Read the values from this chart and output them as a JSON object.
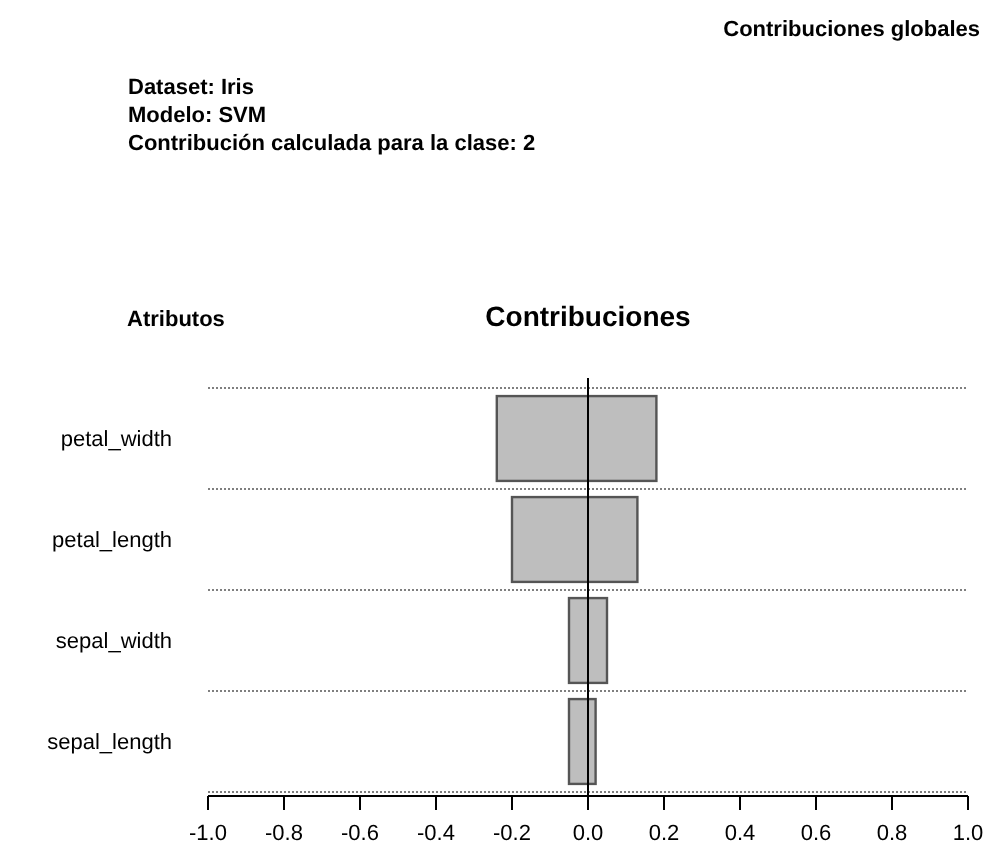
{
  "chart_data": {
    "type": "bar",
    "orientation": "horizontal",
    "title": "Contribuciones",
    "ylabel": "Atributos",
    "annotations": [
      "Contribuciones globales",
      "Dataset: Iris",
      "Modelo: SVM",
      "Contribución calculada para la clase: 2"
    ],
    "categories": [
      "petal_width",
      "petal_length",
      "sepal_width",
      "sepal_length"
    ],
    "values": [
      0.42,
      0.33,
      0.1,
      0.07
    ],
    "base": [
      -0.24,
      -0.2,
      -0.05,
      -0.05
    ],
    "color": "#bebebe",
    "xlim": [
      -1.0,
      1.0
    ],
    "xticks": [
      {
        "value": -1,
        "label": "-1.0"
      },
      {
        "value": -0.8,
        "label": "-0.8"
      },
      {
        "value": -0.6,
        "label": "-0.6"
      },
      {
        "value": -0.4,
        "label": "-0.4"
      },
      {
        "value": -0.2,
        "label": "-0.2"
      },
      {
        "value": 0,
        "label": "0.0"
      },
      {
        "value": 0.2,
        "label": "0.2"
      },
      {
        "value": 0.4,
        "label": "0.4"
      },
      {
        "value": 0.6,
        "label": "0.6"
      },
      {
        "value": 0.8,
        "label": "0.8"
      },
      {
        "value": 1,
        "label": "1.0"
      }
    ],
    "ref_lines": [
      {
        "axis": "x",
        "value": 0,
        "color": "#000000"
      }
    ],
    "grid": "y"
  }
}
